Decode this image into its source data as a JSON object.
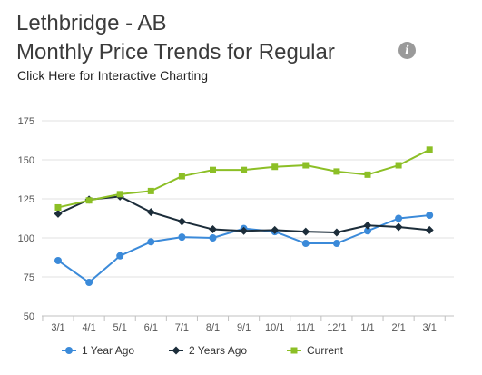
{
  "header": {
    "title_line1": "Lethbridge - AB",
    "title_line2": "Monthly Price Trends for Regular",
    "link_text": "Click Here for Interactive Charting",
    "info_icon": "info-icon",
    "info_glyph": "i"
  },
  "colors": {
    "one_year_ago": "#3b8ad9",
    "two_years_ago": "#1c2d3a",
    "current": "#8cbf26",
    "grid": "#e0e0e0",
    "axis": "#c0c0c0"
  },
  "chart_data": {
    "type": "line",
    "categories": [
      "3/1",
      "4/1",
      "5/1",
      "6/1",
      "7/1",
      "8/1",
      "9/1",
      "10/1",
      "11/1",
      "12/1",
      "1/1",
      "2/1",
      "3/1"
    ],
    "ylim": [
      50,
      175
    ],
    "yticks": [
      50,
      75,
      100,
      125,
      150,
      175
    ],
    "grid": "horizontal",
    "legend_position": "bottom",
    "series": [
      {
        "name": "1 Year Ago",
        "marker": "circle",
        "color": "#3b8ad9",
        "values": [
          85.5,
          71.5,
          88.5,
          97.5,
          100.5,
          100.0,
          106.0,
          104.0,
          96.5,
          96.5,
          104.5,
          112.5,
          114.5
        ]
      },
      {
        "name": "2 Years Ago",
        "marker": "diamond",
        "color": "#1c2d3a",
        "values": [
          115.5,
          124.5,
          126.5,
          116.5,
          110.5,
          105.5,
          104.5,
          105.0,
          104.0,
          103.5,
          108.0,
          107.0,
          105.0
        ]
      },
      {
        "name": "Current",
        "marker": "square",
        "color": "#8cbf26",
        "values": [
          119.5,
          124.0,
          128.0,
          130.0,
          139.5,
          143.5,
          143.5,
          145.5,
          146.5,
          142.5,
          140.5,
          146.5,
          156.5
        ]
      }
    ]
  }
}
